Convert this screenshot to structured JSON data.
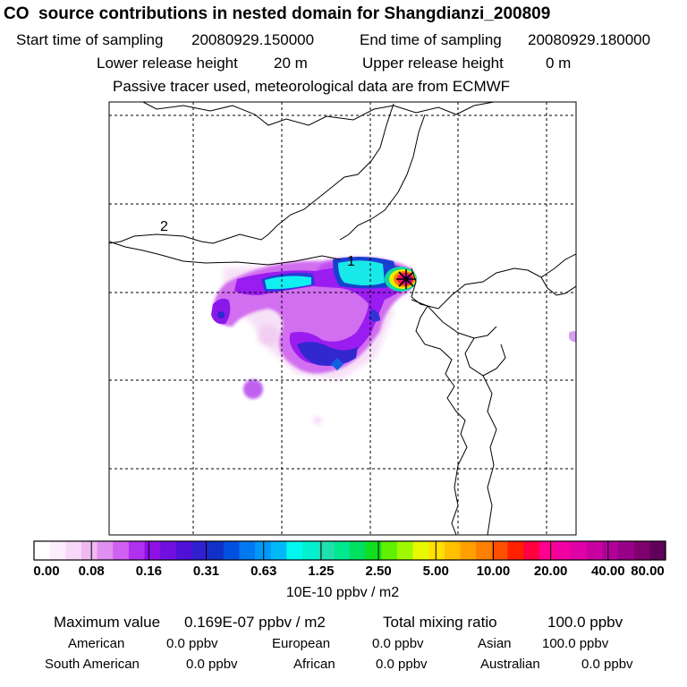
{
  "title": "CO  source contributions in nested domain for Shangdianzi_200809",
  "sampling": {
    "start_label": "Start time of sampling",
    "start_value": "20080929.150000",
    "end_label": "End time of sampling",
    "end_value": "20080929.180000"
  },
  "release": {
    "lower_label": "Lower release height",
    "lower_value": "20 m",
    "upper_label": "Upper release height",
    "upper_value": "0 m"
  },
  "note": "Passive tracer used, meteorological data are from ECMWF",
  "map": {
    "region_labels": [
      "1",
      "2"
    ],
    "receptor_marker": "asterisk"
  },
  "chart_data": {
    "type": "heatmap",
    "colorbar": {
      "tick_labels": [
        "0.00",
        "0.08",
        "0.16",
        "0.31",
        "0.63",
        "1.25",
        "2.50",
        "5.00",
        "10.00",
        "20.00",
        "40.00",
        "80.00"
      ],
      "unit": "10E-10 ppbv / m2",
      "colors": [
        "#ffffff",
        "#fdeefd",
        "#f8d8f8",
        "#f0b8f0",
        "#e090f0",
        "#d060f0",
        "#b030f0",
        "#9010e8",
        "#7010e0",
        "#5010d8",
        "#3020d0",
        "#1030c8",
        "#0050e0",
        "#0078f0",
        "#0098f8",
        "#00b8f8",
        "#00f8f0",
        "#00f0d0",
        "#20e0b0",
        "#00e890",
        "#00e060",
        "#10e020",
        "#60f000",
        "#a0f800",
        "#e8f800",
        "#ffe000",
        "#ffc000",
        "#ffa000",
        "#ff8000",
        "#ff5000",
        "#ff2000",
        "#ff0040",
        "#ff0090",
        "#f000a0",
        "#e000a8",
        "#c800a0",
        "#b00098",
        "#980088",
        "#800070",
        "#600058"
      ]
    }
  },
  "stats": {
    "max_label": "Maximum value",
    "max_value": "0.169E-07 ppbv / m2",
    "total_label": "Total mixing ratio",
    "total_value": "100.0 ppbv",
    "regions": [
      {
        "name": "American",
        "value": "0.0 ppbv"
      },
      {
        "name": "European",
        "value": "0.0 ppbv"
      },
      {
        "name": "Asian",
        "value": "100.0 ppbv"
      },
      {
        "name": "South American",
        "value": "0.0 ppbv"
      },
      {
        "name": "African",
        "value": "0.0 ppbv"
      },
      {
        "name": "Australian",
        "value": "0.0 ppbv"
      }
    ]
  }
}
